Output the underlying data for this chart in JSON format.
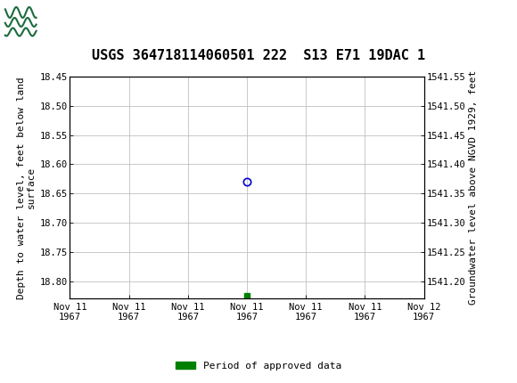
{
  "title": "USGS 364718114060501 222  S13 E71 19DAC 1",
  "header_color": "#1a6b3c",
  "ylabel_left": "Depth to water level, feet below land\nsurface",
  "ylabel_right": "Groundwater level above NGVD 1929, feet",
  "ylim_top": 18.45,
  "ylim_bottom": 18.83,
  "yticks_left": [
    18.45,
    18.5,
    18.55,
    18.6,
    18.65,
    18.7,
    18.75,
    18.8
  ],
  "yticks_right": [
    1541.55,
    1541.5,
    1541.45,
    1541.4,
    1541.35,
    1541.3,
    1541.25,
    1541.2
  ],
  "data_point_x": 12.0,
  "data_point_depth": 18.63,
  "data_point_color": "#0000cc",
  "approved_x": 12.0,
  "approved_depth": 18.825,
  "approved_color": "#008000",
  "legend_label": "Period of approved data",
  "legend_color": "#008000",
  "background_color": "#ffffff",
  "plot_bg_color": "#ffffff",
  "grid_color": "#c0c0c0",
  "font_family": "DejaVu Sans Mono",
  "title_fontsize": 11,
  "tick_fontsize": 7.5,
  "label_fontsize": 8,
  "legend_fontsize": 8,
  "xtick_positions": [
    0,
    4,
    8,
    12,
    16,
    20,
    24
  ],
  "xtick_labels": [
    "Nov 11\n1967",
    "Nov 11\n1967",
    "Nov 11\n1967",
    "Nov 11\n1967",
    "Nov 11\n1967",
    "Nov 11\n1967",
    "Nov 12\n1967"
  ],
  "xlim": [
    0,
    24
  ]
}
